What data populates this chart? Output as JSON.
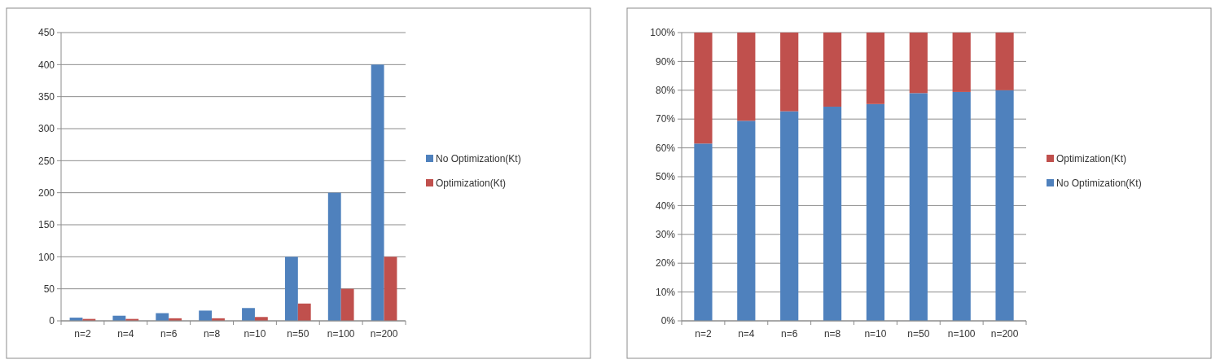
{
  "chart_data": [
    {
      "type": "bar",
      "categories": [
        "n=2",
        "n=4",
        "n=6",
        "n=8",
        "n=10",
        "n=50",
        "n=100",
        "n=200"
      ],
      "series": [
        {
          "name": "No Optimization(Kt)",
          "color": "#4f81bd",
          "values": [
            5,
            8,
            12,
            16,
            20,
            100,
            200,
            400
          ]
        },
        {
          "name": "Optimization(Kt)",
          "color": "#c0504d",
          "values": [
            3,
            3,
            4,
            4,
            6,
            27,
            50,
            100
          ]
        }
      ],
      "ylim": [
        0,
        450
      ],
      "yticks": [
        0,
        50,
        100,
        150,
        200,
        250,
        300,
        350,
        400,
        450
      ],
      "grid": "y",
      "legend": "right"
    },
    {
      "type": "bar",
      "stacked": true,
      "categories": [
        "n=2",
        "n=4",
        "n=6",
        "n=8",
        "n=10",
        "n=50",
        "n=100",
        "n=200"
      ],
      "series": [
        {
          "name": "No Optimization(Kt)",
          "color": "#4f81bd",
          "values": [
            61.5,
            69.4,
            72.7,
            74.3,
            75.2,
            79,
            79.4,
            80
          ]
        },
        {
          "name": "Optimization(Kt)",
          "color": "#c0504d",
          "values": [
            38.5,
            30.6,
            27.3,
            25.7,
            24.8,
            21,
            20.6,
            20
          ]
        }
      ],
      "ylim": [
        0,
        100
      ],
      "yticks": [
        {
          "value": 0,
          "label": "0%"
        },
        {
          "value": 10,
          "label": "10%"
        },
        {
          "value": 20,
          "label": "20%"
        },
        {
          "value": 30,
          "label": "30%"
        },
        {
          "value": 40,
          "label": "40%"
        },
        {
          "value": 50,
          "label": "50%"
        },
        {
          "value": 60,
          "label": "60%"
        },
        {
          "value": 70,
          "label": "70%"
        },
        {
          "value": 80,
          "label": "80%"
        },
        {
          "value": 90,
          "label": "90%"
        },
        {
          "value": 100,
          "label": "100%"
        }
      ],
      "grid": "y",
      "legend": "right"
    }
  ]
}
